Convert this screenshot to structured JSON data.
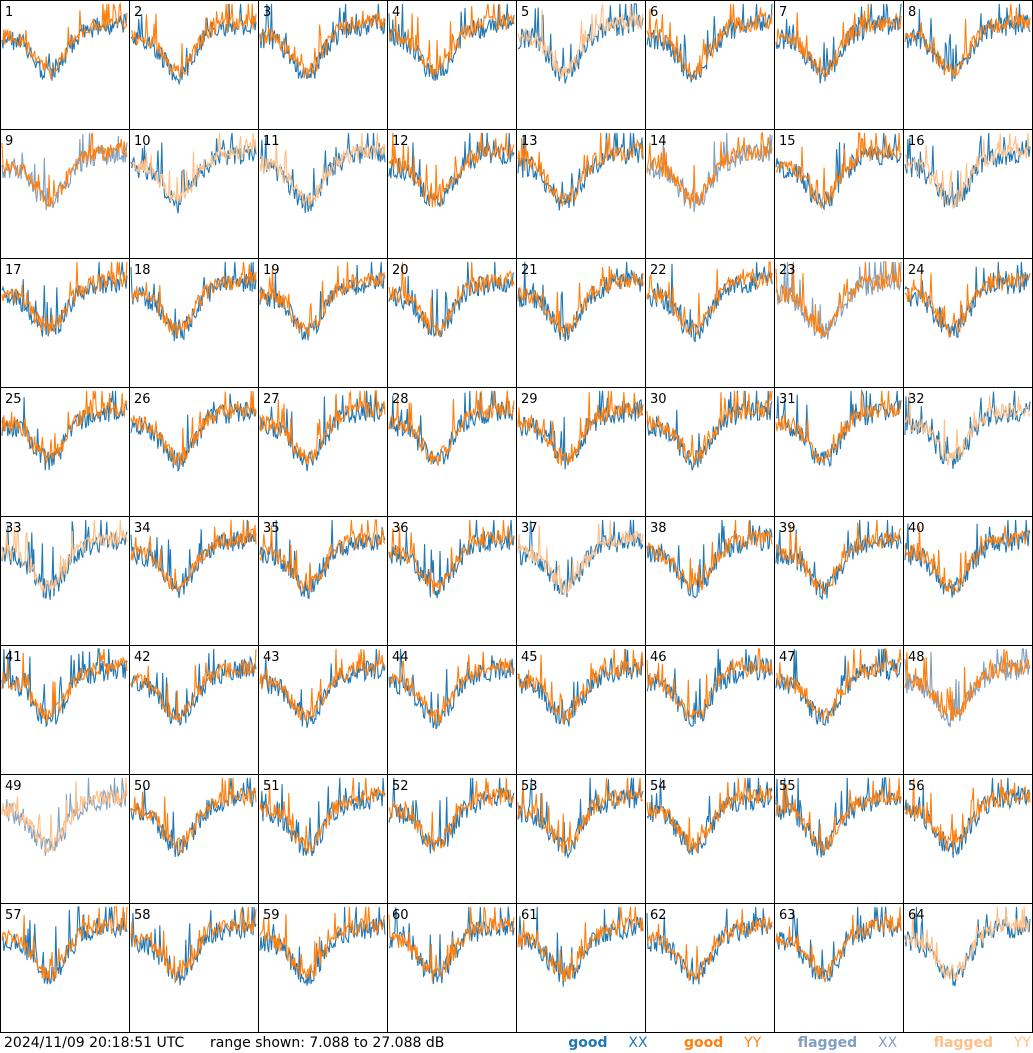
{
  "footer": {
    "timestamp": "2024/11/09 20:18:51 UTC",
    "range_text": "range shown: 7.088 to 27.088 dB"
  },
  "legend": {
    "good_prefix": "good",
    "flagged_prefix": "flagged",
    "xx": "XX",
    "yy": "YY"
  },
  "colors": {
    "good_xx": "#1f77b4",
    "good_yy": "#ff7f0e",
    "flagged_xx": "#7f9fbf",
    "flagged_yy": "#ffbf87"
  },
  "chart_data": {
    "type": "line",
    "grid": {
      "rows": 8,
      "cols": 8
    },
    "ylim": [
      7.088,
      27.088
    ],
    "series": [
      "XX",
      "YY"
    ],
    "tiles": [
      {
        "label": "1",
        "xx": "good",
        "yy": "good"
      },
      {
        "label": "2",
        "xx": "good",
        "yy": "good"
      },
      {
        "label": "3",
        "xx": "good",
        "yy": "good"
      },
      {
        "label": "4",
        "xx": "good",
        "yy": "good"
      },
      {
        "label": "5",
        "xx": "good",
        "yy": "flagged"
      },
      {
        "label": "6",
        "xx": "good",
        "yy": "good"
      },
      {
        "label": "7",
        "xx": "good",
        "yy": "good"
      },
      {
        "label": "8",
        "xx": "good",
        "yy": "good"
      },
      {
        "label": "9",
        "xx": "flagged",
        "yy": "good"
      },
      {
        "label": "10",
        "xx": "good",
        "yy": "flagged"
      },
      {
        "label": "11",
        "xx": "good",
        "yy": "flagged"
      },
      {
        "label": "12",
        "xx": "good",
        "yy": "good"
      },
      {
        "label": "13",
        "xx": "good",
        "yy": "good"
      },
      {
        "label": "14",
        "xx": "flagged",
        "yy": "good"
      },
      {
        "label": "15",
        "xx": "good",
        "yy": "good"
      },
      {
        "label": "16",
        "xx": "good",
        "yy": "flagged"
      },
      {
        "label": "17",
        "xx": "good",
        "yy": "good"
      },
      {
        "label": "18",
        "xx": "good",
        "yy": "good"
      },
      {
        "label": "19",
        "xx": "good",
        "yy": "good"
      },
      {
        "label": "20",
        "xx": "good",
        "yy": "good"
      },
      {
        "label": "21",
        "xx": "good",
        "yy": "good"
      },
      {
        "label": "22",
        "xx": "good",
        "yy": "good"
      },
      {
        "label": "23",
        "xx": "flagged",
        "yy": "good"
      },
      {
        "label": "24",
        "xx": "good",
        "yy": "good"
      },
      {
        "label": "25",
        "xx": "good",
        "yy": "good"
      },
      {
        "label": "26",
        "xx": "good",
        "yy": "good"
      },
      {
        "label": "27",
        "xx": "good",
        "yy": "good"
      },
      {
        "label": "28",
        "xx": "good",
        "yy": "good"
      },
      {
        "label": "29",
        "xx": "good",
        "yy": "good"
      },
      {
        "label": "30",
        "xx": "good",
        "yy": "good"
      },
      {
        "label": "31",
        "xx": "good",
        "yy": "good"
      },
      {
        "label": "32",
        "xx": "good",
        "yy": "flagged"
      },
      {
        "label": "33",
        "xx": "good",
        "yy": "flagged"
      },
      {
        "label": "34",
        "xx": "good",
        "yy": "good"
      },
      {
        "label": "35",
        "xx": "good",
        "yy": "good"
      },
      {
        "label": "36",
        "xx": "good",
        "yy": "good"
      },
      {
        "label": "37",
        "xx": "good",
        "yy": "flagged"
      },
      {
        "label": "38",
        "xx": "good",
        "yy": "good"
      },
      {
        "label": "39",
        "xx": "good",
        "yy": "good"
      },
      {
        "label": "40",
        "xx": "good",
        "yy": "good"
      },
      {
        "label": "41",
        "xx": "good",
        "yy": "good"
      },
      {
        "label": "42",
        "xx": "good",
        "yy": "good"
      },
      {
        "label": "43",
        "xx": "good",
        "yy": "good"
      },
      {
        "label": "44",
        "xx": "good",
        "yy": "good"
      },
      {
        "label": "45",
        "xx": "good",
        "yy": "good"
      },
      {
        "label": "46",
        "xx": "good",
        "yy": "good"
      },
      {
        "label": "47",
        "xx": "good",
        "yy": "good"
      },
      {
        "label": "48",
        "xx": "flagged",
        "yy": "good"
      },
      {
        "label": "49",
        "xx": "flagged",
        "yy": "flagged"
      },
      {
        "label": "50",
        "xx": "good",
        "yy": "good"
      },
      {
        "label": "51",
        "xx": "good",
        "yy": "good"
      },
      {
        "label": "52",
        "xx": "good",
        "yy": "good"
      },
      {
        "label": "53",
        "xx": "good",
        "yy": "good"
      },
      {
        "label": "54",
        "xx": "good",
        "yy": "good"
      },
      {
        "label": "55",
        "xx": "good",
        "yy": "good"
      },
      {
        "label": "56",
        "xx": "good",
        "yy": "good"
      },
      {
        "label": "57",
        "xx": "good",
        "yy": "good"
      },
      {
        "label": "58",
        "xx": "good",
        "yy": "good"
      },
      {
        "label": "59",
        "xx": "good",
        "yy": "good"
      },
      {
        "label": "60",
        "xx": "good",
        "yy": "good"
      },
      {
        "label": "61",
        "xx": "good",
        "yy": "good"
      },
      {
        "label": "62",
        "xx": "good",
        "yy": "good"
      },
      {
        "label": "63",
        "xx": "good",
        "yy": "good"
      },
      {
        "label": "64",
        "xx": "good",
        "yy": "flagged"
      }
    ]
  }
}
